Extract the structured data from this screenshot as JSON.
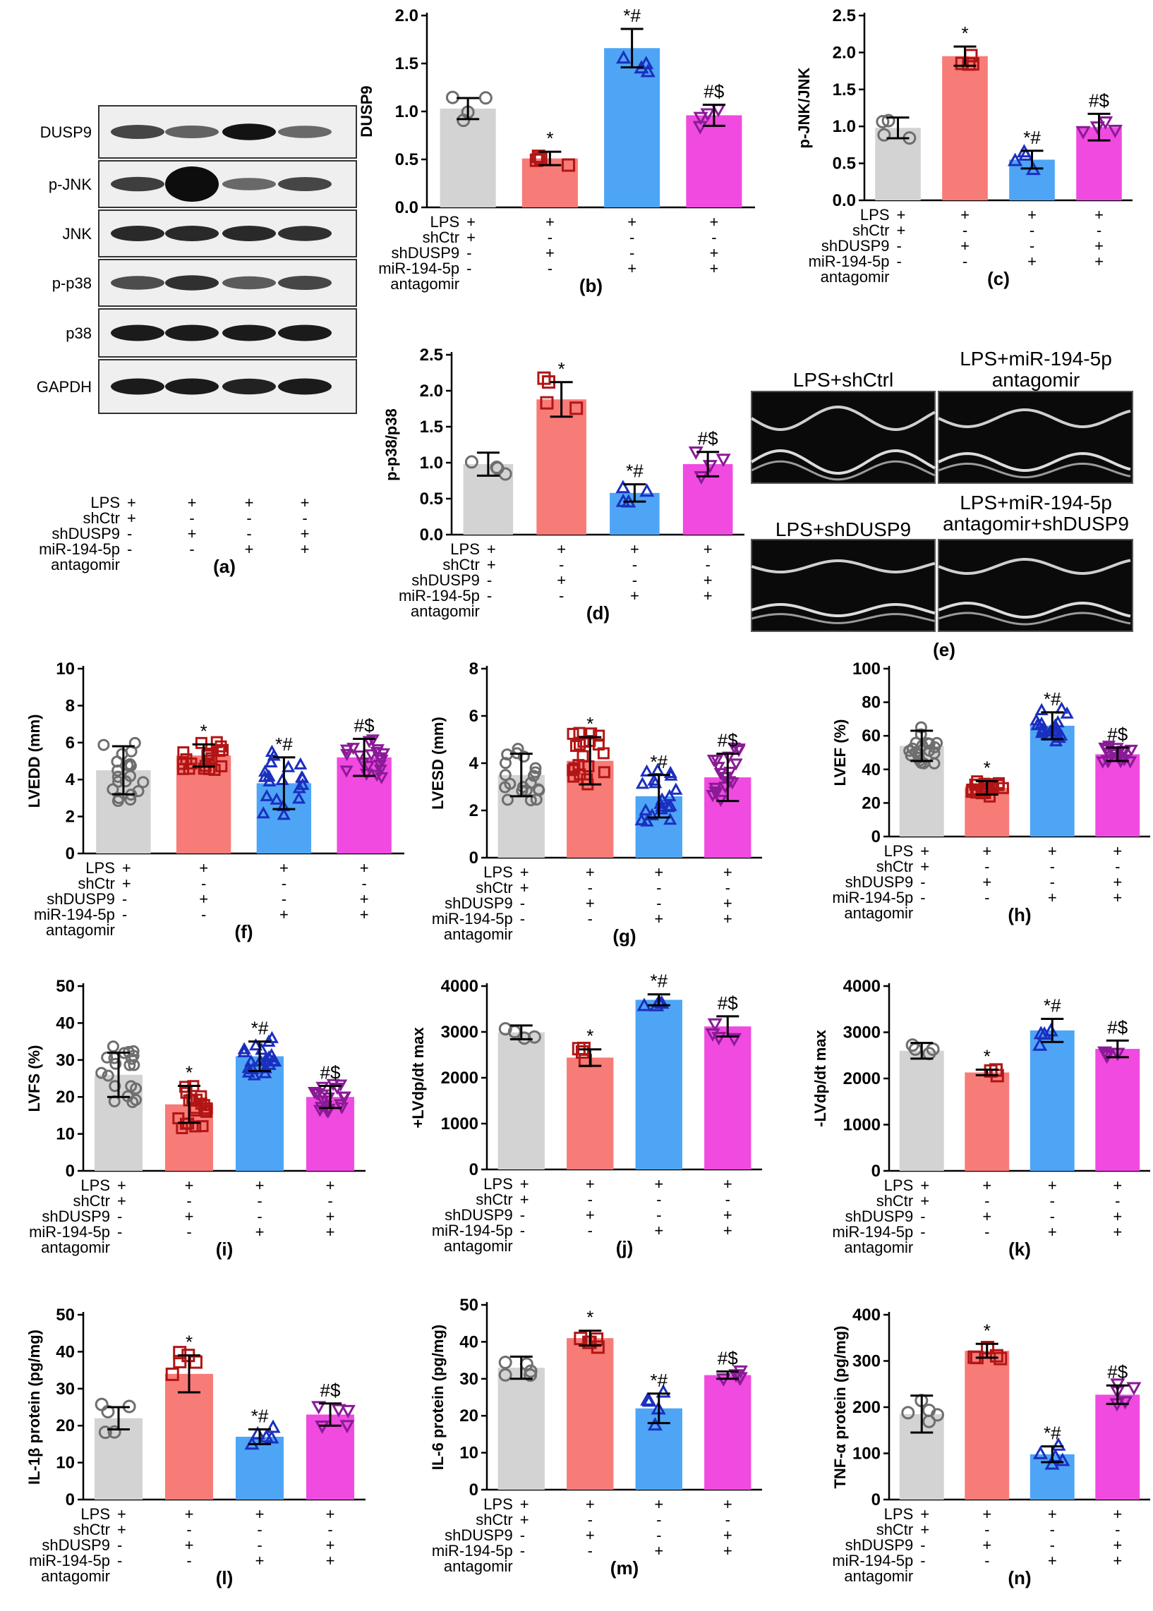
{
  "conditions": {
    "row_labels": [
      "LPS",
      "shCtr",
      "shDUSP9",
      "miR-194-5p",
      "antagomir"
    ],
    "marks": [
      [
        "+",
        "+",
        "+",
        "+"
      ],
      [
        "+",
        "-",
        "-",
        "-"
      ],
      [
        "-",
        "+",
        "-",
        "+"
      ],
      [
        "-",
        "-",
        "+",
        "+"
      ]
    ]
  },
  "colors": [
    "#d3d3d3",
    "#f77b77",
    "#4ea5f5",
    "#f04ae0"
  ],
  "marker_colors": [
    "#6e6e6e",
    "#b21515",
    "#1a2fbf",
    "#8a1a96"
  ],
  "blot": {
    "label": "(a)",
    "bands": [
      "DUSP9",
      "p-JNK",
      "JNK",
      "p-p38",
      "p38",
      "GAPDH"
    ]
  },
  "echo": {
    "label": "(e)",
    "titles": [
      "LPS+shCtrl",
      "LPS+miR-194-5p antagomir",
      "LPS+shDUSP9",
      "LPS+miR-194-5p antagomir+shDUSP9"
    ]
  },
  "chart_data": [
    {
      "id": "b",
      "label": "(b)",
      "type": "bar",
      "ylabel": "DUSP9",
      "ylim": [
        0,
        2.0
      ],
      "ticks": [
        0,
        0.5,
        1.0,
        1.5,
        2.0
      ],
      "decimals": 1,
      "values": [
        1.03,
        0.51,
        1.66,
        0.96
      ],
      "errors": [
        0.11,
        0.07,
        0.2,
        0.11
      ],
      "annotations": [
        "",
        "*",
        "*#",
        "#$"
      ]
    },
    {
      "id": "c",
      "label": "(c)",
      "type": "bar",
      "ylabel": "p-JNK/JNK",
      "ylim": [
        0,
        2.5
      ],
      "ticks": [
        0,
        0.5,
        1.0,
        1.5,
        2.0,
        2.5
      ],
      "decimals": 1,
      "values": [
        0.98,
        1.95,
        0.55,
        0.99
      ],
      "errors": [
        0.14,
        0.13,
        0.12,
        0.18
      ],
      "annotations": [
        "",
        "*",
        "*#",
        "#$"
      ]
    },
    {
      "id": "d",
      "label": "(d)",
      "type": "bar",
      "ylabel": "p-p38/p38",
      "ylim": [
        0,
        2.5
      ],
      "ticks": [
        0,
        0.5,
        1.0,
        1.5,
        2.0,
        2.5
      ],
      "decimals": 1,
      "values": [
        0.98,
        1.88,
        0.58,
        0.98
      ],
      "errors": [
        0.16,
        0.24,
        0.12,
        0.17
      ],
      "annotations": [
        "",
        "*",
        "*#",
        "#$"
      ]
    },
    {
      "id": "f",
      "label": "(f)",
      "type": "bar",
      "ylabel": "LVEDD (mm)",
      "ylim": [
        0,
        10
      ],
      "ticks": [
        0,
        2,
        4,
        6,
        8,
        10
      ],
      "decimals": 0,
      "values": [
        4.5,
        5.3,
        3.8,
        5.2
      ],
      "errors": [
        1.3,
        0.6,
        1.4,
        1.0
      ],
      "annotations": [
        "",
        "*",
        "*#",
        "#$"
      ]
    },
    {
      "id": "g",
      "label": "(g)",
      "type": "bar",
      "ylabel": "LVESD (mm)",
      "ylim": [
        0,
        8
      ],
      "ticks": [
        0,
        2,
        4,
        6,
        8
      ],
      "decimals": 0,
      "values": [
        3.5,
        4.1,
        2.6,
        3.4
      ],
      "errors": [
        0.9,
        1.0,
        0.9,
        1.0
      ],
      "annotations": [
        "",
        "*",
        "*#",
        "#$"
      ]
    },
    {
      "id": "h",
      "label": "(h)",
      "type": "bar",
      "ylabel": "LVEF (%)",
      "ylim": [
        0,
        100
      ],
      "ticks": [
        0,
        20,
        40,
        60,
        80,
        100
      ],
      "decimals": 0,
      "values": [
        54,
        29,
        66,
        49
      ],
      "errors": [
        9,
        4,
        8,
        4
      ],
      "annotations": [
        "",
        "*",
        "*#",
        "#$"
      ]
    },
    {
      "id": "i",
      "label": "(i)",
      "type": "bar",
      "ylabel": "LVFS (%)",
      "ylim": [
        0,
        50
      ],
      "ticks": [
        0,
        10,
        20,
        30,
        40,
        50
      ],
      "decimals": 0,
      "values": [
        26,
        18,
        31,
        20
      ],
      "errors": [
        6,
        5,
        4,
        3
      ],
      "annotations": [
        "",
        "*",
        "*#",
        "#$"
      ]
    },
    {
      "id": "j",
      "label": "(j)",
      "type": "bar",
      "ylabel": "+LVdp/dt max",
      "ylim": [
        0,
        4000
      ],
      "ticks": [
        0,
        1000,
        2000,
        3000,
        4000
      ],
      "decimals": 0,
      "values": [
        2990,
        2440,
        3700,
        3120
      ],
      "errors": [
        150,
        180,
        120,
        220
      ],
      "annotations": [
        "",
        "*",
        "*#",
        "#$"
      ]
    },
    {
      "id": "k",
      "label": "(k)",
      "type": "bar",
      "ylabel": "-LVdp/dt max",
      "ylim": [
        0,
        4000
      ],
      "ticks": [
        0,
        1000,
        2000,
        3000,
        4000
      ],
      "decimals": 0,
      "values": [
        2600,
        2130,
        3040,
        2640
      ],
      "errors": [
        170,
        60,
        250,
        180
      ],
      "annotations": [
        "",
        "*",
        "*#",
        "#$"
      ]
    },
    {
      "id": "l",
      "label": "(l)",
      "type": "bar",
      "ylabel": "IL-1β protein (pg/mg)",
      "ylim": [
        0,
        50
      ],
      "ticks": [
        0,
        10,
        20,
        30,
        40,
        50
      ],
      "decimals": 0,
      "values": [
        22,
        34,
        17,
        23
      ],
      "errors": [
        3,
        5,
        2,
        3
      ],
      "annotations": [
        "",
        "*",
        "*#",
        "#$"
      ]
    },
    {
      "id": "m",
      "label": "(m)",
      "type": "bar",
      "ylabel": "IL-6 protein (pg/mg)",
      "ylim": [
        0,
        50
      ],
      "ticks": [
        0,
        10,
        20,
        30,
        40,
        50
      ],
      "decimals": 0,
      "values": [
        33,
        41,
        22,
        31
      ],
      "errors": [
        3,
        2,
        4,
        1
      ],
      "annotations": [
        "",
        "*",
        "*#",
        "#$"
      ]
    },
    {
      "id": "n",
      "label": "(n)",
      "type": "bar",
      "ylabel": "TNF-α protein (pg/mg)",
      "ylim": [
        0,
        400
      ],
      "ticks": [
        0,
        100,
        200,
        300,
        400
      ],
      "decimals": 0,
      "values": [
        185,
        322,
        98,
        227
      ],
      "errors": [
        40,
        15,
        17,
        20
      ],
      "annotations": [
        "",
        "*",
        "*#",
        "#$"
      ]
    }
  ]
}
